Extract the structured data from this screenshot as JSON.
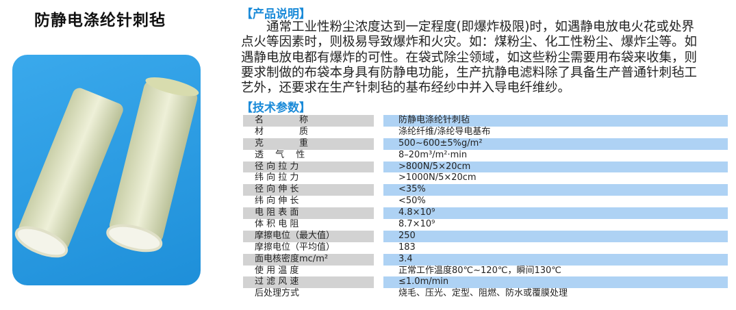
{
  "title": "防静电涤纶针刺毡",
  "colors": {
    "accent": "#1a8ad8",
    "photo_bg": "#2a9be0",
    "row_key_bg": "#d2d2d2",
    "row_val_bg": "#aed2f4"
  },
  "description": {
    "header": "【产品说明】",
    "lines": [
      "　　通常工业性粉尘浓度达到一定程度(即爆炸极限)时，如遇静电放电火花或处界",
      "点火等因素时，则极易导致爆炸和火灾。如：煤粉尘、化工性粉尘、爆炸尘等。如",
      "遇静电放电都有爆炸的可性。在袋式除尘领域，如这些粉尘需要用布袋来收集，则",
      "要求制做的布袋本身具有防静电功能，生产抗静电滤料除了具备生产普通针刺毡工",
      "艺外，还要求在生产针刺毡的基布经纱中并入导电纤维纱。"
    ]
  },
  "specs": {
    "header": "【技术参数】",
    "rows": [
      {
        "k": "名　　　　称",
        "v": "防静电涤纶针刺毡"
      },
      {
        "k": "材　　　　质",
        "v": "涤纶纤维/涤纶导电基布"
      },
      {
        "k": "克　　　　重",
        "v": "500~600±5%g/m²"
      },
      {
        "k": "透　 气　 性",
        "v": "8–20m³/m²·min"
      },
      {
        "k": "径 向 拉 力",
        "v": ">800N/5×20cm"
      },
      {
        "k": "纬 向 拉 力",
        "v": ">1000N/5×20cm"
      },
      {
        "k": "径 向 伸 长",
        "v": "<35%"
      },
      {
        "k": "纬 向 伸 长",
        "v": "<50%"
      },
      {
        "k": "电 阻 表 面",
        "v": "4.8×10⁹"
      },
      {
        "k": "体 积 电 阻",
        "v": "8.7×10⁹"
      },
      {
        "k": "摩擦电位（最大值）",
        "v": "250"
      },
      {
        "k": "摩擦电位（平均值）",
        "v": "183"
      },
      {
        "k": "面电核密度mc/m²",
        "v": "3.4"
      },
      {
        "k": "使 用 温 度",
        "v": "正常工作温度80℃~120℃，瞬间130℃"
      },
      {
        "k": "过 滤 风 速",
        "v": "≤1.0m/min"
      },
      {
        "k": "后处理方式",
        "v": "烧毛、压光、定型、阻燃、防水或覆膜处理"
      }
    ]
  }
}
